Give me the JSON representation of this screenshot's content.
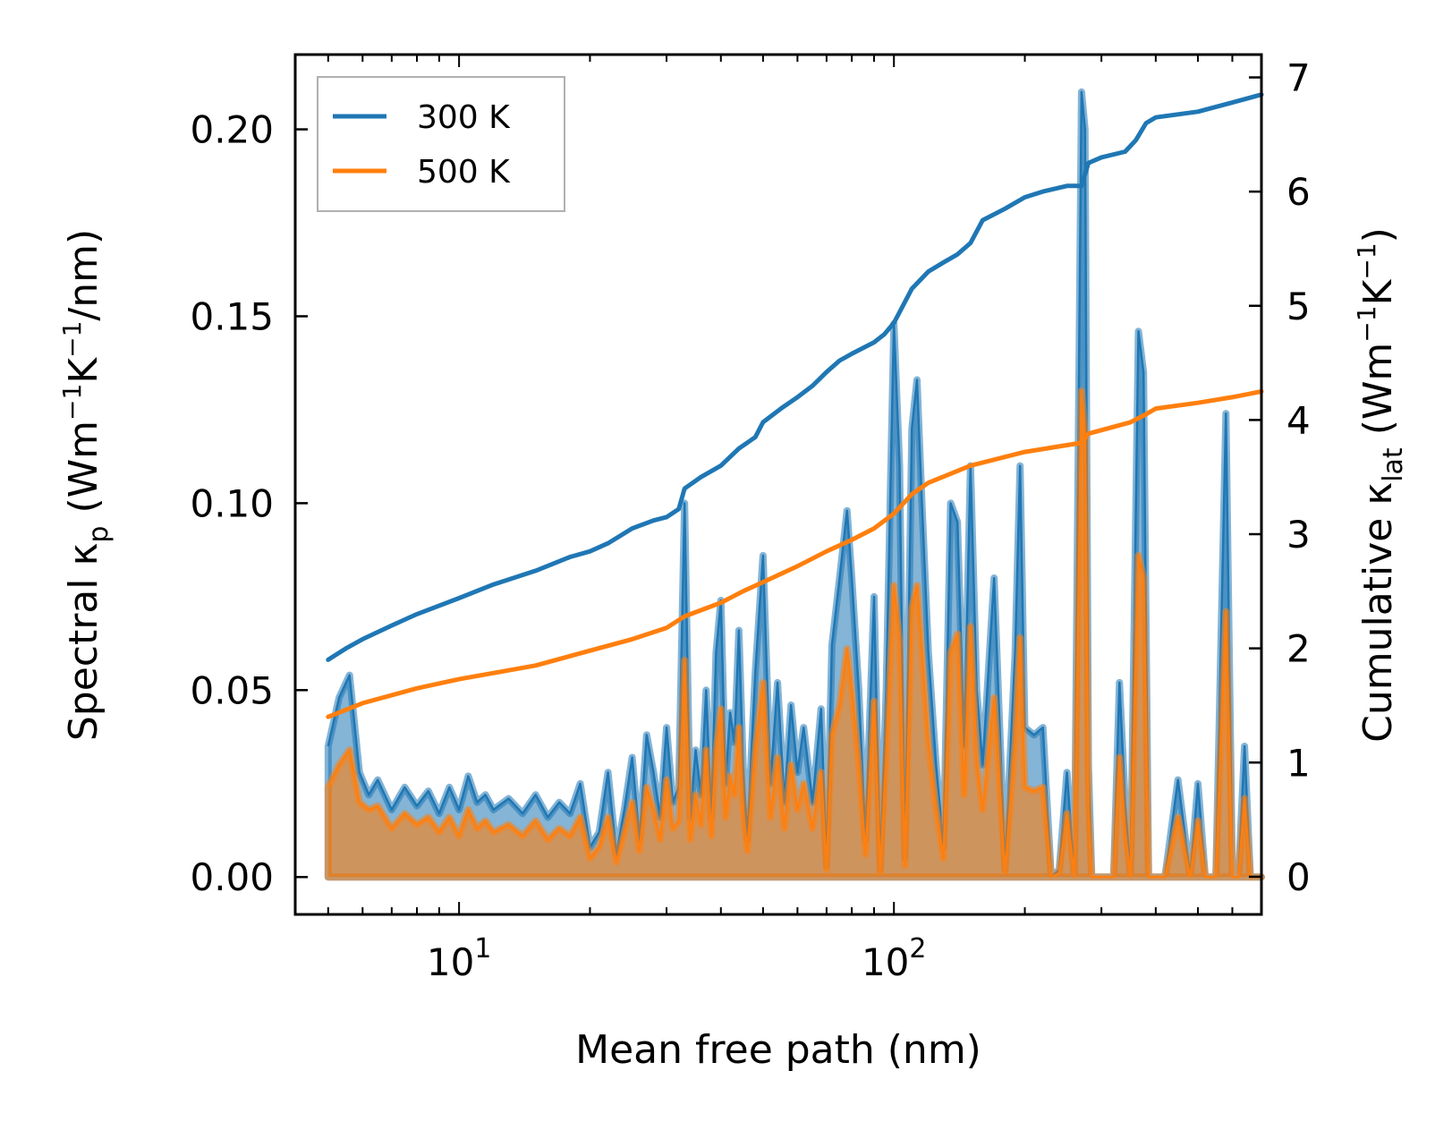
{
  "chart_data": {
    "type": "line",
    "xscale": "log",
    "xlim": [
      4.2,
      700
    ],
    "xlabel": "Mean free path (nm)",
    "xticks": [
      {
        "value": 10,
        "base": "10",
        "exp": "1"
      },
      {
        "value": 100,
        "base": "10",
        "exp": "2"
      }
    ],
    "left_axis": {
      "label": {
        "pre": "Spectral κ",
        "sub": "p",
        "mid": " (Wm",
        "sup1": "−1",
        "k": "K",
        "sup2": "−1",
        "post": "/nm)"
      },
      "ylim": [
        -0.01,
        0.22
      ],
      "ticks": [
        {
          "value": 0.0,
          "label": "0.00"
        },
        {
          "value": 0.05,
          "label": "0.05"
        },
        {
          "value": 0.1,
          "label": "0.10"
        },
        {
          "value": 0.15,
          "label": "0.15"
        },
        {
          "value": 0.2,
          "label": "0.20"
        }
      ]
    },
    "right_axis": {
      "label": {
        "pre": "Cumulative κ",
        "sub": "lat",
        "mid": " (Wm",
        "sup1": "−1",
        "k": "K",
        "sup2": "−1",
        "post": ")"
      },
      "ylim": [
        -0.33,
        7.2
      ],
      "ticks": [
        {
          "value": 0,
          "label": "0"
        },
        {
          "value": 1,
          "label": "1"
        },
        {
          "value": 2,
          "label": "2"
        },
        {
          "value": 3,
          "label": "3"
        },
        {
          "value": 4,
          "label": "4"
        },
        {
          "value": 5,
          "label": "5"
        },
        {
          "value": 6,
          "label": "6"
        },
        {
          "value": 7,
          "label": "7"
        }
      ]
    },
    "legend": {
      "position": "top-left",
      "entries": [
        {
          "name": "300 K",
          "color": "#1f77b4"
        },
        {
          "name": "500 K",
          "color": "#ff7f0e"
        }
      ]
    },
    "cumulative_series": [
      {
        "name": "300 K",
        "color": "#1f77b4",
        "x": [
          5,
          5.5,
          6,
          7,
          8,
          10,
          12,
          15,
          18,
          20,
          22,
          25,
          28,
          30,
          32,
          33,
          36,
          40,
          44,
          48,
          50,
          55,
          60,
          65,
          70,
          75,
          80,
          90,
          95,
          100,
          110,
          120,
          130,
          140,
          150,
          160,
          180,
          200,
          220,
          250,
          270,
          280,
          300,
          340,
          360,
          380,
          400,
          500,
          600,
          700
        ],
        "y": [
          1.9,
          2.0,
          2.08,
          2.2,
          2.3,
          2.44,
          2.56,
          2.68,
          2.8,
          2.85,
          2.92,
          3.05,
          3.12,
          3.15,
          3.22,
          3.4,
          3.5,
          3.6,
          3.75,
          3.85,
          3.98,
          4.1,
          4.2,
          4.3,
          4.42,
          4.52,
          4.58,
          4.68,
          4.75,
          4.85,
          5.15,
          5.3,
          5.38,
          5.45,
          5.55,
          5.75,
          5.85,
          5.95,
          6.0,
          6.05,
          6.05,
          6.25,
          6.3,
          6.35,
          6.45,
          6.6,
          6.65,
          6.7,
          6.78,
          6.85
        ]
      },
      {
        "name": "500 K",
        "color": "#ff7f0e",
        "x": [
          5,
          6,
          8,
          10,
          15,
          20,
          25,
          30,
          33,
          40,
          45,
          50,
          60,
          70,
          80,
          90,
          100,
          110,
          120,
          150,
          200,
          270,
          280,
          350,
          380,
          400,
          500,
          600,
          700
        ],
        "y": [
          1.4,
          1.52,
          1.65,
          1.73,
          1.85,
          1.98,
          2.08,
          2.18,
          2.28,
          2.4,
          2.5,
          2.58,
          2.72,
          2.85,
          2.95,
          3.05,
          3.18,
          3.35,
          3.45,
          3.6,
          3.72,
          3.8,
          3.88,
          3.98,
          4.05,
          4.1,
          4.15,
          4.2,
          4.25
        ]
      }
    ],
    "spectral_series": [
      {
        "name": "300 K",
        "color": "#1f77b4",
        "x": [
          5,
          5.3,
          5.6,
          5.9,
          6.2,
          6.5,
          7,
          7.5,
          8,
          8.5,
          9,
          9.5,
          10,
          10.5,
          11,
          11.5,
          12,
          13,
          14,
          15,
          16,
          17,
          18,
          19,
          20,
          21,
          22,
          23,
          24,
          25,
          26,
          27,
          28,
          29,
          30,
          31,
          32,
          33,
          34,
          35,
          36,
          37,
          38,
          39,
          40,
          41,
          42,
          43,
          44,
          45,
          46,
          48,
          50,
          52,
          54,
          56,
          58,
          60,
          62,
          65,
          68,
          70,
          72,
          75,
          78,
          80,
          83,
          86,
          90,
          93,
          96,
          100,
          103,
          106,
          110,
          113,
          116,
          120,
          125,
          130,
          135,
          140,
          145,
          150,
          155,
          160,
          170,
          180,
          190,
          195,
          200,
          210,
          220,
          230,
          240,
          250,
          260,
          270,
          275,
          280,
          285,
          300,
          320,
          330,
          340,
          350,
          365,
          375,
          385,
          400,
          420,
          450,
          480,
          500,
          520,
          550,
          580,
          600,
          620,
          640,
          660,
          680,
          700
        ],
        "y": [
          0.035,
          0.048,
          0.054,
          0.028,
          0.022,
          0.026,
          0.018,
          0.024,
          0.019,
          0.023,
          0.017,
          0.024,
          0.018,
          0.027,
          0.02,
          0.022,
          0.018,
          0.021,
          0.017,
          0.022,
          0.016,
          0.02,
          0.017,
          0.025,
          0.008,
          0.012,
          0.028,
          0.006,
          0.018,
          0.032,
          0.01,
          0.038,
          0.028,
          0.016,
          0.04,
          0.02,
          0.024,
          0.1,
          0.016,
          0.034,
          0.022,
          0.05,
          0.016,
          0.06,
          0.074,
          0.025,
          0.044,
          0.036,
          0.066,
          0.03,
          0.01,
          0.055,
          0.086,
          0.025,
          0.052,
          0.02,
          0.046,
          0.028,
          0.04,
          0.02,
          0.045,
          0.003,
          0.062,
          0.08,
          0.098,
          0.08,
          0.05,
          0.01,
          0.075,
          0.002,
          0.05,
          0.148,
          0.11,
          0.005,
          0.12,
          0.133,
          0.1,
          0.06,
          0.03,
          0.008,
          0.1,
          0.095,
          0.035,
          0.11,
          0.05,
          0.03,
          0.08,
          0.002,
          0.06,
          0.11,
          0.04,
          0.038,
          0.04,
          0.0,
          0.002,
          0.028,
          0.0,
          0.21,
          0.2,
          0.03,
          0.0,
          0.0,
          0.0,
          0.052,
          0.02,
          0.0,
          0.146,
          0.135,
          0.0,
          0.0,
          0.0,
          0.026,
          0.0,
          0.025,
          0.0,
          0.0,
          0.124,
          0.0,
          0.0,
          0.035,
          0.0,
          0.0,
          0.0
        ]
      },
      {
        "name": "500 K",
        "color": "#ff7f0e",
        "x": [
          5,
          5.3,
          5.6,
          5.9,
          6.2,
          6.5,
          7,
          7.5,
          8,
          8.5,
          9,
          9.5,
          10,
          10.5,
          11,
          11.5,
          12,
          13,
          14,
          15,
          16,
          17,
          18,
          19,
          20,
          21,
          22,
          23,
          24,
          25,
          26,
          27,
          28,
          29,
          30,
          31,
          32,
          33,
          34,
          35,
          36,
          37,
          38,
          39,
          40,
          41,
          42,
          43,
          44,
          45,
          46,
          48,
          50,
          52,
          54,
          56,
          58,
          60,
          62,
          65,
          68,
          70,
          72,
          75,
          78,
          80,
          83,
          86,
          90,
          93,
          96,
          100,
          103,
          106,
          110,
          113,
          116,
          120,
          125,
          130,
          135,
          140,
          145,
          150,
          155,
          160,
          170,
          180,
          190,
          195,
          200,
          210,
          220,
          230,
          240,
          250,
          260,
          270,
          275,
          280,
          285,
          300,
          320,
          330,
          340,
          350,
          365,
          375,
          385,
          400,
          420,
          450,
          480,
          500,
          520,
          550,
          580,
          600,
          620,
          640,
          660,
          680,
          700
        ],
        "y": [
          0.024,
          0.03,
          0.034,
          0.02,
          0.018,
          0.019,
          0.013,
          0.017,
          0.014,
          0.016,
          0.012,
          0.016,
          0.011,
          0.018,
          0.013,
          0.015,
          0.012,
          0.014,
          0.011,
          0.015,
          0.01,
          0.013,
          0.011,
          0.016,
          0.005,
          0.008,
          0.016,
          0.004,
          0.012,
          0.02,
          0.007,
          0.024,
          0.018,
          0.01,
          0.026,
          0.013,
          0.015,
          0.058,
          0.01,
          0.022,
          0.014,
          0.034,
          0.011,
          0.034,
          0.045,
          0.016,
          0.027,
          0.022,
          0.04,
          0.018,
          0.007,
          0.034,
          0.052,
          0.016,
          0.032,
          0.013,
          0.03,
          0.018,
          0.025,
          0.013,
          0.028,
          0.002,
          0.038,
          0.046,
          0.061,
          0.05,
          0.03,
          0.006,
          0.047,
          0.001,
          0.032,
          0.078,
          0.063,
          0.003,
          0.072,
          0.078,
          0.06,
          0.036,
          0.018,
          0.005,
          0.06,
          0.065,
          0.022,
          0.067,
          0.031,
          0.018,
          0.048,
          0.001,
          0.036,
          0.064,
          0.024,
          0.023,
          0.024,
          0.0,
          0.001,
          0.017,
          0.0,
          0.13,
          0.118,
          0.018,
          0.0,
          0.0,
          0.0,
          0.032,
          0.012,
          0.0,
          0.086,
          0.08,
          0.0,
          0.0,
          0.0,
          0.016,
          0.0,
          0.015,
          0.0,
          0.0,
          0.071,
          0.0,
          0.0,
          0.021,
          0.0,
          0.0,
          0.0
        ]
      }
    ]
  }
}
